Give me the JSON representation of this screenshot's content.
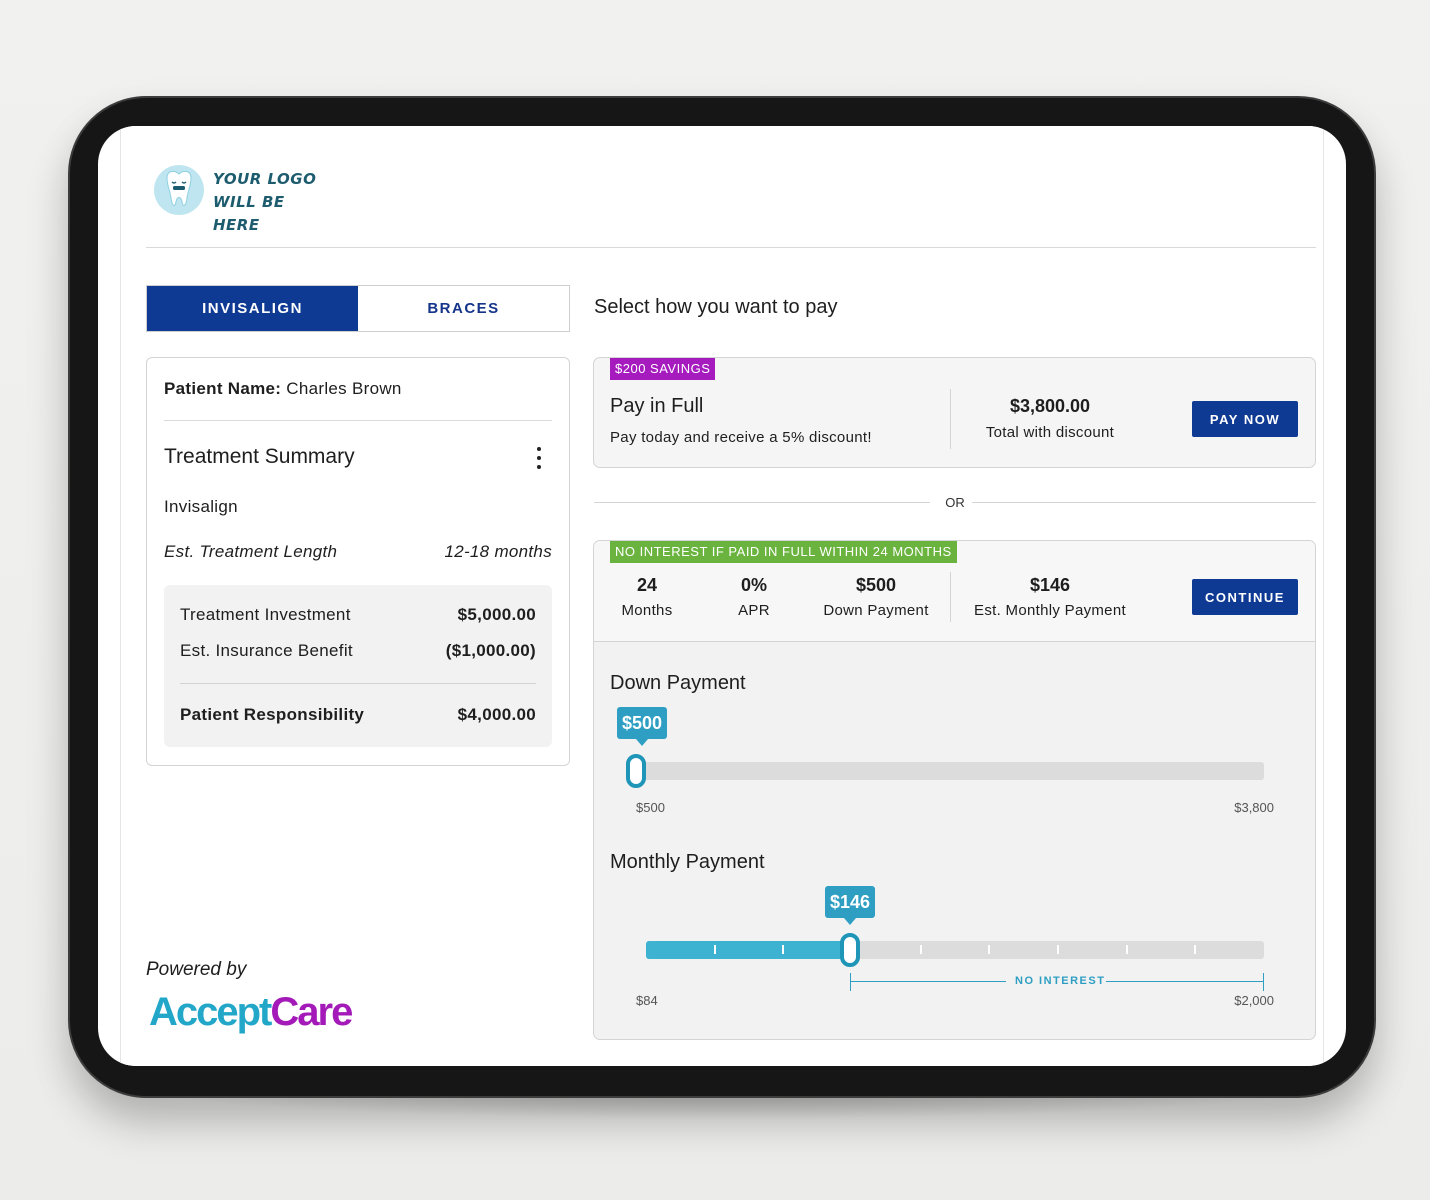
{
  "header": {
    "logo_line1": "YOUR LOGO",
    "logo_line2": "WILL BE HERE"
  },
  "tabs": [
    {
      "label": "INVISALIGN",
      "active": true
    },
    {
      "label": "BRACES",
      "active": false
    }
  ],
  "summary": {
    "patient_label": "Patient Name:",
    "patient_name": "Charles Brown",
    "title": "Treatment Summary",
    "treatment_type": "Invisalign",
    "length_label": "Est. Treatment Length",
    "length_value": "12-18 months",
    "investment_label": "Treatment Investment",
    "investment_value": "$5,000.00",
    "insurance_label": "Est. Insurance Benefit",
    "insurance_value": "($1,000.00)",
    "responsibility_label": "Patient Responsibility",
    "responsibility_value": "$4,000.00"
  },
  "footer": {
    "powered_by": "Powered by",
    "brand_part1": "Accept",
    "brand_part2": "Care"
  },
  "payment": {
    "title": "Select how you want to pay",
    "or_label": "OR",
    "pay_full": {
      "badge": "$200 SAVINGS",
      "title": "Pay in Full",
      "subtitle": "Pay today and receive a 5% discount!",
      "amount": "$3,800.00",
      "amount_label": "Total with discount",
      "button": "PAY NOW"
    },
    "plan": {
      "badge": "NO INTEREST IF PAID IN FULL WITHIN 24 MONTHS",
      "stats": [
        {
          "value": "24",
          "label": "Months"
        },
        {
          "value": "0%",
          "label": "APR"
        },
        {
          "value": "$500",
          "label": "Down Payment"
        },
        {
          "value": "$146",
          "label": "Est. Monthly Payment"
        }
      ],
      "button": "CONTINUE",
      "down_payment": {
        "title": "Down Payment",
        "value_label": "$500",
        "min_label": "$500",
        "max_label": "$3,800",
        "min": 500,
        "max": 3800,
        "value": 500
      },
      "monthly_payment": {
        "title": "Monthly Payment",
        "value_label": "$146",
        "min_label": "$84",
        "max_label": "$2,000",
        "no_interest_label": "NO INTEREST",
        "value_fraction": 0.33
      }
    }
  },
  "colors": {
    "primary": "#0f3a94",
    "accent": "#2e9fc3",
    "savings_badge": "#a51bbd",
    "interest_badge": "#6ab33e"
  }
}
